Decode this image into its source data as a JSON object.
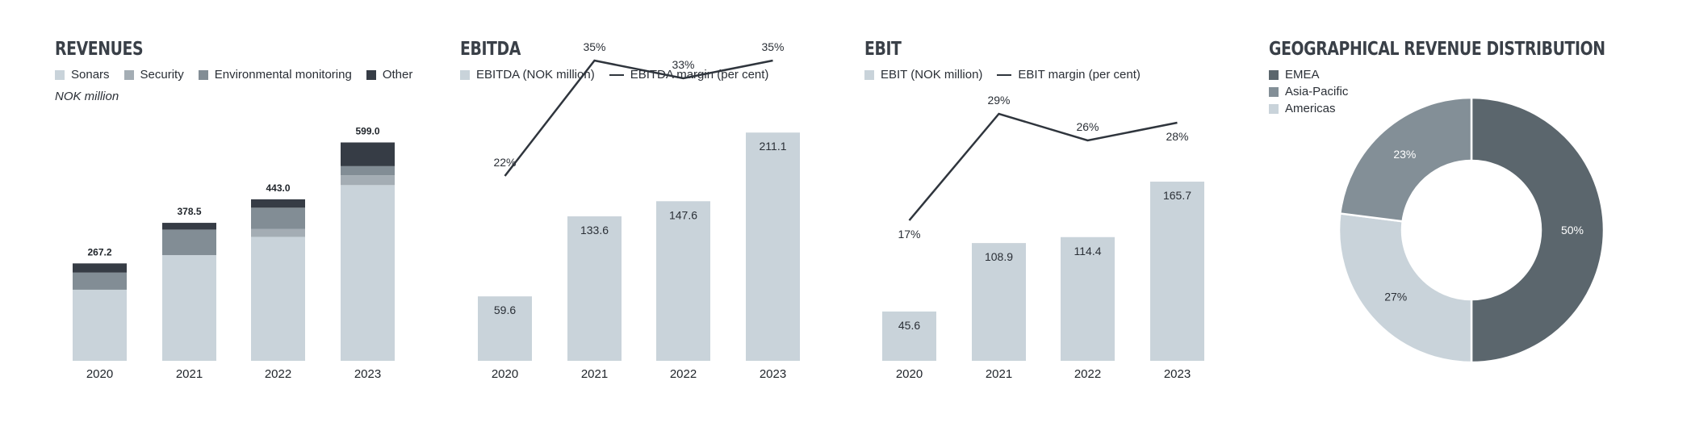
{
  "colors": {
    "sonars": "#c9d3da",
    "security": "#a4adb4",
    "env": "#828d95",
    "other": "#363c45",
    "bar": "#c9d3da",
    "line": "#2f353d",
    "emea": "#5b666d",
    "apac": "#838f97",
    "americas": "#c9d3da"
  },
  "panels": {
    "revenues": {
      "title": "REVENUES",
      "note": "NOK million",
      "legend": [
        "Sonars",
        "Security",
        "Environmental monitoring",
        "Other"
      ]
    },
    "ebitda": {
      "title": "EBITDA",
      "legend": [
        "EBITDA (NOK million)",
        "EBITDA margin (per cent)"
      ]
    },
    "ebit": {
      "title": "EBIT",
      "legend": [
        "EBIT (NOK million)",
        "EBIT margin (per cent)"
      ]
    },
    "geo": {
      "title": "GEOGRAPHICAL REVENUE DISTRIBUTION",
      "legend": [
        "EMEA",
        "Asia-Pacific",
        "Americas"
      ]
    }
  },
  "chart_data": [
    {
      "type": "bar",
      "stacked": true,
      "title": "REVENUES",
      "subtitle": "NOK million",
      "categories": [
        "2020",
        "2021",
        "2022",
        "2023"
      ],
      "series": [
        {
          "name": "Sonars",
          "values": [
            195,
            290,
            340,
            482
          ]
        },
        {
          "name": "Security",
          "values": [
            0,
            0,
            22,
            27
          ]
        },
        {
          "name": "Environmental monitoring",
          "values": [
            47,
            70,
            58,
            25
          ]
        },
        {
          "name": "Other",
          "values": [
            25.2,
            18.5,
            23,
            65
          ]
        }
      ],
      "totals": [
        "267.2",
        "378.5",
        "443.0",
        "599.0"
      ],
      "ylim": [
        0,
        620
      ]
    },
    {
      "type": "bar",
      "title": "EBITDA",
      "categories": [
        "2020",
        "2021",
        "2022",
        "2023"
      ],
      "series": [
        {
          "name": "EBITDA (NOK million)",
          "values": [
            59.6,
            133.6,
            147.6,
            211.1
          ]
        },
        {
          "name": "EBITDA margin (per cent)",
          "type": "line",
          "values": [
            22,
            35,
            33,
            35
          ]
        }
      ],
      "bar_labels": [
        "59.6",
        "133.6",
        "147.6",
        "211.1"
      ],
      "line_labels": [
        "22%",
        "35%",
        "33%",
        "35%"
      ],
      "ylim": [
        0,
        215
      ]
    },
    {
      "type": "bar",
      "title": "EBIT",
      "categories": [
        "2020",
        "2021",
        "2022",
        "2023"
      ],
      "series": [
        {
          "name": "EBIT (NOK million)",
          "values": [
            45.6,
            108.9,
            114.4,
            165.7
          ]
        },
        {
          "name": "EBIT margin (per cent)",
          "type": "line",
          "values": [
            17,
            29,
            26,
            28
          ]
        }
      ],
      "bar_labels": [
        "45.6",
        "108.9",
        "114.4",
        "165.7"
      ],
      "line_labels": [
        "17%",
        "29%",
        "26%",
        "28%"
      ],
      "ylim": [
        0,
        215
      ]
    },
    {
      "type": "pie",
      "donut": true,
      "title": "GEOGRAPHICAL REVENUE DISTRIBUTION",
      "labels": [
        "EMEA",
        "Americas",
        "Asia-Pacific"
      ],
      "values": [
        50,
        27,
        23
      ],
      "value_labels": [
        "50%",
        "27%",
        "23%"
      ]
    }
  ]
}
